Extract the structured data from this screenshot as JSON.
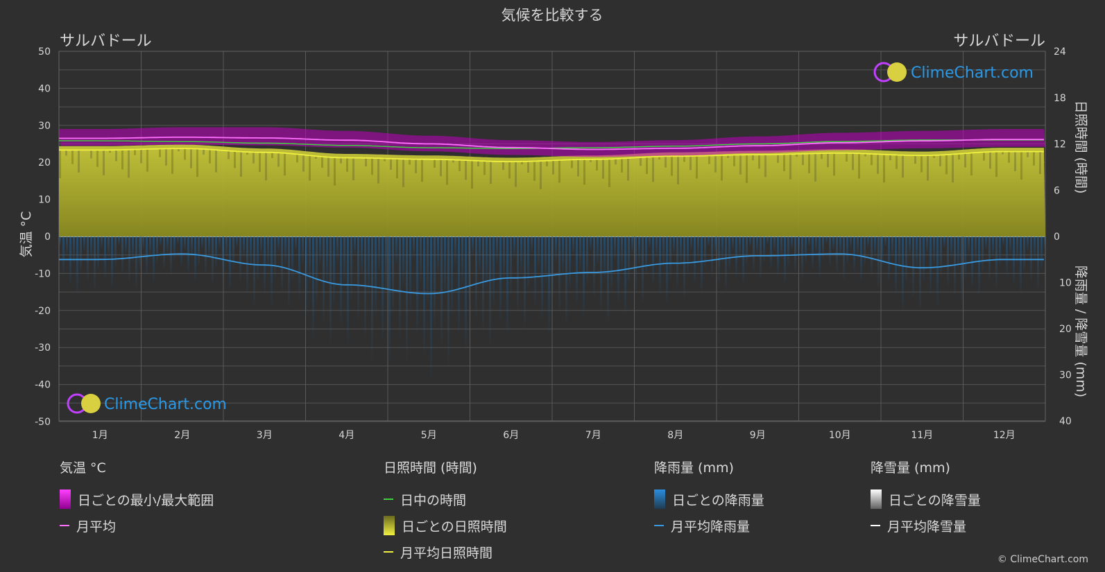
{
  "title": "気候を比較する",
  "location_left": "サルバドール",
  "location_right": "サルバドール",
  "watermark": "ClimeChart.com",
  "copyright": "© ClimeChart.com",
  "colors": {
    "background": "#2f2f2f",
    "temp_range": "#d000d0",
    "temp_mean": "#ff70ff",
    "daylight": "#40d040",
    "sunshine_fill": "#b8b830",
    "sunshine_mean": "#f0f040",
    "rain_fill": "#1e6fb0",
    "rain_mean": "#3a9ae0",
    "snow_mean": "#ffffff"
  },
  "axes": {
    "left_label": "気温 °C",
    "right_top_label": "日照時間 (時間)",
    "right_bottom_label": "降雨量 / 降雪量 (mm)",
    "left_ticks": [
      50,
      40,
      30,
      20,
      10,
      0,
      -10,
      -20,
      -30,
      -40,
      -50
    ],
    "right_top_ticks": [
      24,
      18,
      12,
      6,
      0
    ],
    "right_bottom_ticks": [
      10,
      20,
      30,
      40
    ]
  },
  "chart_data": {
    "type": "area",
    "x": [
      "1月",
      "2月",
      "3月",
      "4月",
      "5月",
      "6月",
      "7月",
      "8月",
      "9月",
      "10月",
      "11月",
      "12月"
    ],
    "temp_range_c": {
      "ylim": [
        -50,
        50
      ]
    },
    "series": [
      {
        "name": "月平均",
        "unit": "°C",
        "values": [
          26.5,
          26.8,
          26.6,
          26.0,
          25.0,
          24.0,
          23.5,
          23.8,
          24.5,
          25.3,
          25.8,
          26.2
        ]
      },
      {
        "name": "日中の時間",
        "unit": "時間",
        "values": [
          12.4,
          12.3,
          12.1,
          11.8,
          11.5,
          11.4,
          11.5,
          11.7,
          12.0,
          12.3,
          12.5,
          12.5
        ]
      },
      {
        "name": "月平均日照時間",
        "unit": "時間",
        "values": [
          11.2,
          11.4,
          10.9,
          10.2,
          10.0,
          9.7,
          10.0,
          10.4,
          10.6,
          10.8,
          10.5,
          11.0
        ]
      },
      {
        "name": "月平均降雨量",
        "unit": "mm",
        "values": [
          5.0,
          3.8,
          6.2,
          10.5,
          12.4,
          9.0,
          7.8,
          5.8,
          4.2,
          3.8,
          6.8,
          5.0
        ]
      }
    ],
    "temp_range": {
      "min": [
        24.5,
        24.8,
        24.6,
        24.0,
        23.0,
        22.0,
        21.5,
        21.8,
        22.5,
        23.3,
        23.8,
        24.2
      ],
      "max": [
        29.0,
        29.5,
        29.5,
        28.5,
        27.2,
        26.0,
        25.5,
        26.0,
        27.0,
        28.0,
        28.5,
        29.0
      ]
    },
    "sunshine_hours_ylim": [
      0,
      24
    ],
    "precip_mm_ylim": [
      0,
      40
    ]
  },
  "legend": {
    "groups": [
      {
        "title": "気温 °C",
        "items": [
          {
            "label": "日ごとの最小/最大範囲",
            "kind": "rect",
            "color": "#d000d0"
          },
          {
            "label": "月平均",
            "kind": "line",
            "color": "#ff70ff"
          }
        ]
      },
      {
        "title": "日照時間 (時間)",
        "items": [
          {
            "label": "日中の時間",
            "kind": "line",
            "color": "#40d040"
          },
          {
            "label": "日ごとの日照時間",
            "kind": "rect",
            "color": "#c8c83a"
          },
          {
            "label": "月平均日照時間",
            "kind": "line",
            "color": "#f0f040"
          }
        ]
      },
      {
        "title": "降雨量 (mm)",
        "items": [
          {
            "label": "日ごとの降雨量",
            "kind": "rect",
            "color": "#2a8ee0"
          },
          {
            "label": "月平均降雨量",
            "kind": "line",
            "color": "#3a9ae0"
          }
        ]
      },
      {
        "title": "降雪量 (mm)",
        "items": [
          {
            "label": "日ごとの降雪量",
            "kind": "rect",
            "color": "#e0e0e0"
          },
          {
            "label": "月平均降雪量",
            "kind": "line",
            "color": "#ffffff"
          }
        ]
      }
    ]
  }
}
